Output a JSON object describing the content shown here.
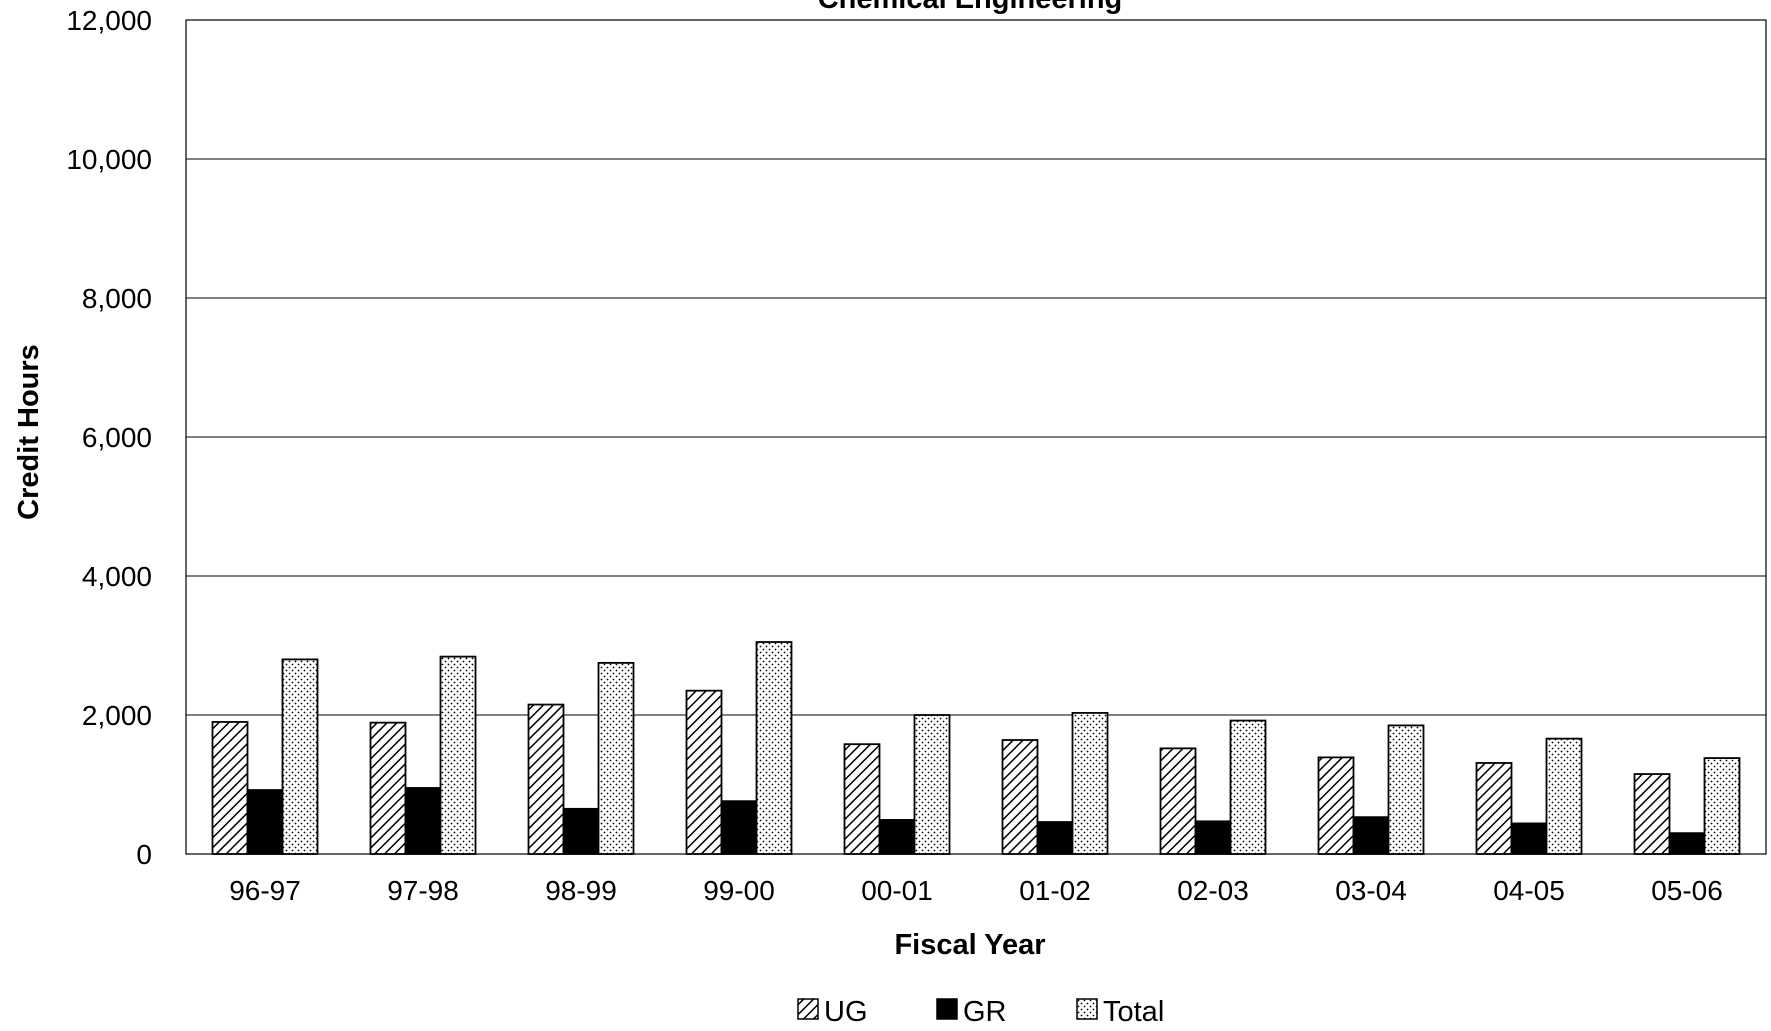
{
  "chart_data": {
    "type": "bar",
    "title": "Chemical Engineering",
    "xlabel": "Fiscal Year",
    "ylabel": "Credit Hours",
    "ylim": [
      0,
      12000
    ],
    "yticks": [
      0,
      2000,
      4000,
      6000,
      8000,
      10000,
      12000
    ],
    "ytick_labels": [
      "0",
      "2,000",
      "4,000",
      "6,000",
      "8,000",
      "10,000",
      "12,000"
    ],
    "grid": true,
    "legend_position": "bottom",
    "categories": [
      "96-97",
      "97-98",
      "98-99",
      "99-00",
      "00-01",
      "01-02",
      "02-03",
      "03-04",
      "04-05",
      "05-06"
    ],
    "series": [
      {
        "name": "UG",
        "pattern": "hatch",
        "values": [
          1900,
          1890,
          2150,
          2350,
          1580,
          1640,
          1520,
          1390,
          1310,
          1150
        ]
      },
      {
        "name": "GR",
        "pattern": "solid",
        "values": [
          920,
          950,
          650,
          760,
          490,
          460,
          470,
          530,
          440,
          300
        ]
      },
      {
        "name": "Total",
        "pattern": "dots",
        "values": [
          2800,
          2840,
          2750,
          3050,
          2000,
          2030,
          1920,
          1850,
          1660,
          1380
        ]
      }
    ]
  }
}
